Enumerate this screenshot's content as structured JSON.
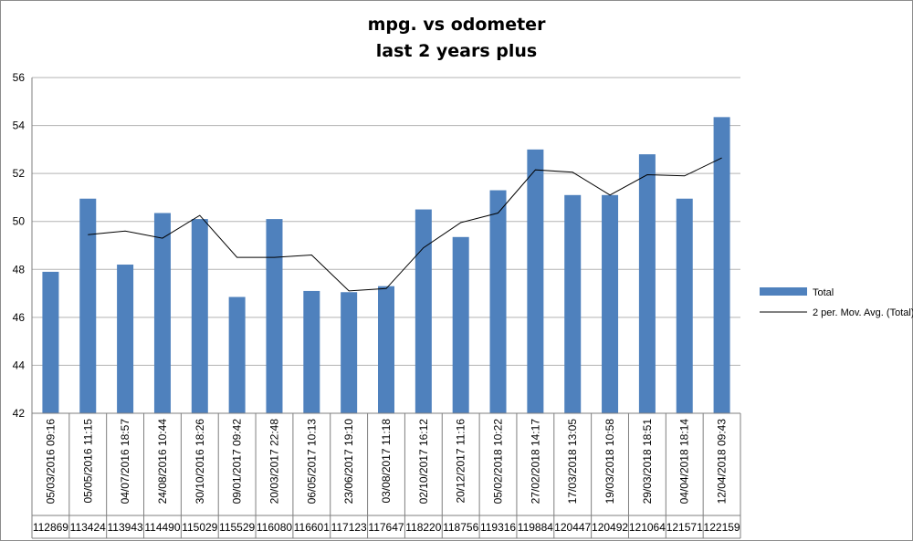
{
  "chart_data": {
    "type": "bar",
    "title": "mpg. vs odometer",
    "subtitle": "last 2 years plus",
    "xlabel": "",
    "ylabel": "",
    "ylim": [
      42,
      56
    ],
    "yticks": [
      42,
      44,
      46,
      48,
      50,
      52,
      54,
      56
    ],
    "grid": true,
    "legend_position": "right",
    "colors": {
      "bar": "#4f81bd",
      "line": "#000000",
      "grid": "#b3b3b3"
    },
    "categories": [
      "05/03/2016 09:16",
      "05/05/2016 11:15",
      "04/07/2016 18:57",
      "24/08/2016 10:44",
      "30/10/2016 18:26",
      "09/01/2017 09:42",
      "20/03/2017 22:48",
      "06/05/2017 10:13",
      "23/06/2017 19:10",
      "03/08/2017 11:18",
      "02/10/2017 16:12",
      "20/12/2017 11:16",
      "05/02/2018 10:22",
      "27/02/2018 14:17",
      "17/03/2018 13:05",
      "19/03/2018 10:58",
      "29/03/2018 18:51",
      "04/04/2018 18:14",
      "12/04/2018 09:43"
    ],
    "odometer": [
      "112869",
      "113424",
      "113943",
      "114490",
      "115029",
      "115529",
      "116080",
      "116601",
      "117123",
      "117647",
      "118220",
      "118756",
      "119316",
      "119884",
      "120447",
      "120492",
      "121064",
      "121571",
      "122159"
    ],
    "series": [
      {
        "name": "Total",
        "type": "bar",
        "values": [
          47.9,
          50.95,
          48.2,
          50.35,
          50.1,
          46.85,
          50.1,
          47.1,
          47.05,
          47.3,
          50.5,
          49.35,
          51.3,
          53.0,
          51.1,
          51.1,
          52.8,
          50.95,
          54.35
        ]
      },
      {
        "name": "2 per. Mov. Avg. (Total)",
        "type": "line",
        "values": [
          null,
          49.45,
          49.6,
          49.3,
          50.25,
          48.5,
          48.5,
          48.6,
          47.1,
          47.2,
          48.9,
          49.95,
          50.35,
          52.15,
          52.05,
          51.1,
          51.95,
          51.9,
          52.65
        ]
      }
    ]
  }
}
